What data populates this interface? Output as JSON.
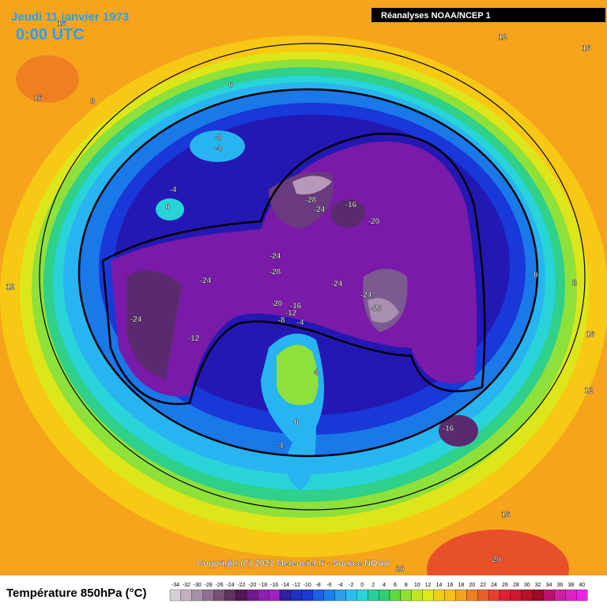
{
  "header": {
    "date": "Jeudi 11 janvier 1973",
    "time": "0:00 UTC",
    "source": "Réanalyses NOAA/NCEP 1"
  },
  "copyright": "Copyright (C) 2021 Meteociel.fr - Source NOAA",
  "legend": {
    "title": "Température 850hPa (°C)",
    "ticks": [
      -34,
      -32,
      -30,
      -28,
      -26,
      -24,
      -22,
      -20,
      -18,
      -16,
      -14,
      -12,
      -10,
      -8,
      -6,
      -4,
      -2,
      0,
      2,
      4,
      6,
      8,
      10,
      12,
      14,
      16,
      18,
      20,
      22,
      24,
      26,
      28,
      30,
      32,
      34,
      36,
      38,
      40
    ]
  },
  "contour_labels": [
    16,
    12,
    16,
    16,
    8,
    0,
    -8,
    -4,
    -4,
    0,
    -28,
    -24,
    -16,
    -20,
    -24,
    -28,
    -24,
    -24,
    -24,
    -28,
    12,
    8,
    0,
    -20,
    -16,
    -12,
    -8,
    -4,
    -24,
    -12,
    16,
    4,
    12,
    0,
    -16,
    -4,
    16,
    20,
    20
  ]
}
